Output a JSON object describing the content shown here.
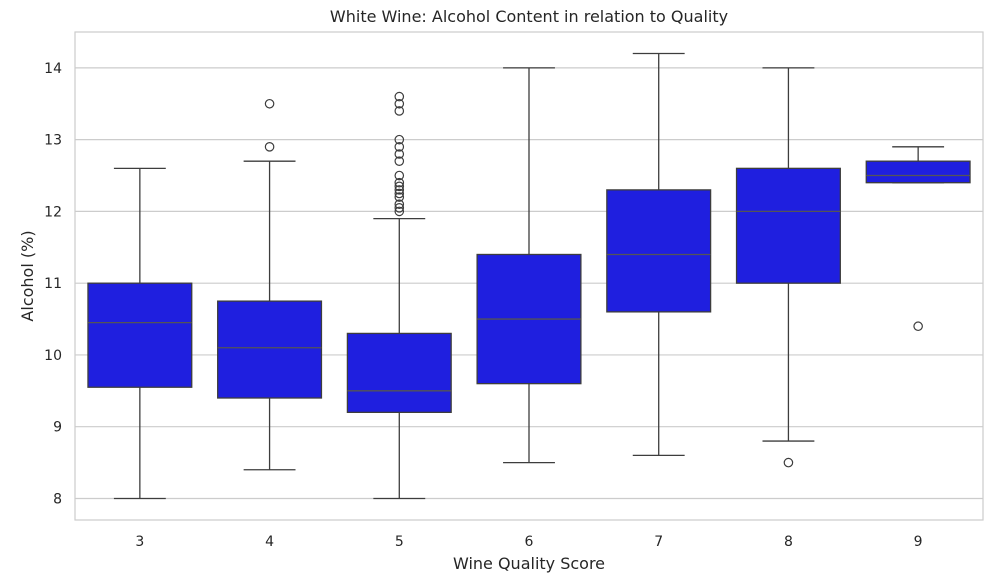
{
  "chart_data": {
    "type": "box",
    "title": "White Wine: Alcohol Content in relation to Quality",
    "xlabel": "Wine Quality Score",
    "ylabel": "Alcohol (%)",
    "ylim": [
      7.7,
      14.5
    ],
    "yticks": [
      8,
      9,
      10,
      11,
      12,
      13,
      14
    ],
    "grid": true,
    "box_color": "#1f1fdf",
    "median_color": "#555555",
    "whisker_color": "#3d3d3d",
    "grid_color": "#cccccc",
    "categories": [
      "3",
      "4",
      "5",
      "6",
      "7",
      "8",
      "9"
    ],
    "boxes": [
      {
        "category": "3",
        "whisker_low": 8.0,
        "q1": 9.55,
        "median": 10.45,
        "q3": 11.0,
        "whisker_high": 12.6,
        "outliers": []
      },
      {
        "category": "4",
        "whisker_low": 8.4,
        "q1": 9.4,
        "median": 10.1,
        "q3": 10.75,
        "whisker_high": 12.7,
        "outliers": [
          12.9,
          13.5
        ]
      },
      {
        "category": "5",
        "whisker_low": 8.0,
        "q1": 9.2,
        "median": 9.5,
        "q3": 10.3,
        "whisker_high": 11.9,
        "outliers": [
          12.0,
          12.05,
          12.1,
          12.2,
          12.25,
          12.3,
          12.35,
          12.4,
          12.5,
          12.7,
          12.8,
          12.9,
          13.0,
          13.4,
          13.5,
          13.6
        ]
      },
      {
        "category": "6",
        "whisker_low": 8.5,
        "q1": 9.6,
        "median": 10.5,
        "q3": 11.4,
        "whisker_high": 14.0,
        "outliers": []
      },
      {
        "category": "7",
        "whisker_low": 8.6,
        "q1": 10.6,
        "median": 11.4,
        "q3": 12.3,
        "whisker_high": 14.2,
        "outliers": []
      },
      {
        "category": "8",
        "whisker_low": 8.8,
        "q1": 11.0,
        "median": 12.0,
        "q3": 12.6,
        "whisker_high": 14.0,
        "outliers": [
          8.5
        ]
      },
      {
        "category": "9",
        "whisker_low": 12.4,
        "q1": 12.4,
        "median": 12.5,
        "q3": 12.7,
        "whisker_high": 12.9,
        "outliers": [
          10.4
        ]
      }
    ]
  }
}
